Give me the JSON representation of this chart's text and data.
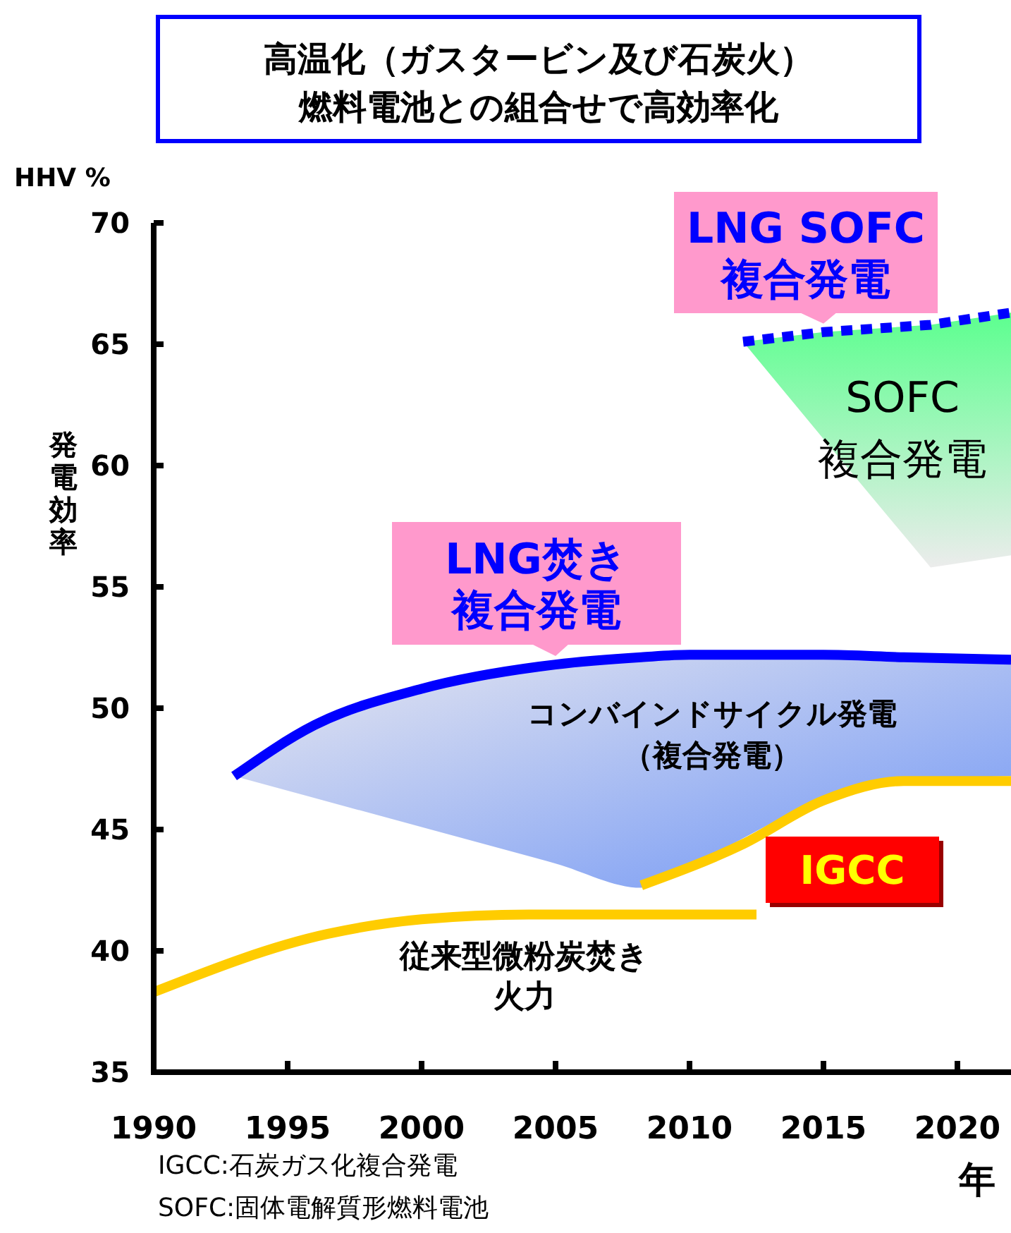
{
  "chart_data": {
    "type": "line",
    "title": "高温化（ガスタービン及び石炭火）燃料電池との組合せで高効率化",
    "xlabel": "年",
    "ylabel": "発電効率",
    "annotations": [
      "HHV %",
      "SOFC複合発電",
      "コンバインドサイクル発電（複合発電）",
      "IGCC:石炭ガス化複合発電",
      "SOFC:固体電解質形燃料電池"
    ],
    "xlim": [
      1990,
      2022
    ],
    "ylim": [
      35,
      70
    ],
    "xticks": [
      1990,
      1995,
      2000,
      2005,
      2010,
      2015,
      2020
    ],
    "yticks": [
      35,
      40,
      45,
      50,
      55,
      60,
      65,
      70
    ],
    "series": [
      {
        "name": "従来型微粉炭焚き火力",
        "color": "#ffcc00",
        "line_style": "solid",
        "x": [
          1990,
          1996.5,
          2000,
          2004,
          2012.5
        ],
        "values": [
          38.3,
          40.7,
          41.3,
          41.5,
          41.5
        ]
      },
      {
        "name": "IGCC",
        "color": "#ffcc00",
        "line_style": "solid",
        "x": [
          2008.2,
          2012,
          2015,
          2018,
          2022
        ],
        "values": [
          42.7,
          44.4,
          46.2,
          47.0,
          47.0
        ]
      },
      {
        "name": "LNG焚き複合発電",
        "color": "#0000ff",
        "line_style": "solid",
        "x": [
          1993,
          1996,
          2000,
          2005,
          2008.2,
          2010,
          2015,
          2018,
          2022
        ],
        "values": [
          47.2,
          49.3,
          50.8,
          51.8,
          52.1,
          52.2,
          52.2,
          52.1,
          52.0
        ],
        "upper": [
          47.2,
          49.3,
          50.8,
          51.8,
          52.1,
          52.2,
          52.2,
          52.1,
          52.0
        ],
        "lower": [
          47.2,
          46.3,
          45.1,
          43.6,
          42.6,
          43.5,
          46.2,
          47.0,
          47.2
        ]
      },
      {
        "name": "LNG SOFC複合発電",
        "color": "#0000ff",
        "line_style": "dotted",
        "x": [
          2012,
          2015,
          2019,
          2022
        ],
        "values": [
          65.1,
          65.5,
          65.8,
          66.3
        ],
        "upper": [
          65.1,
          65.5,
          65.8,
          66.3
        ],
        "lower": [
          65.1,
          61.1,
          55.8,
          56.3
        ]
      }
    ]
  }
}
